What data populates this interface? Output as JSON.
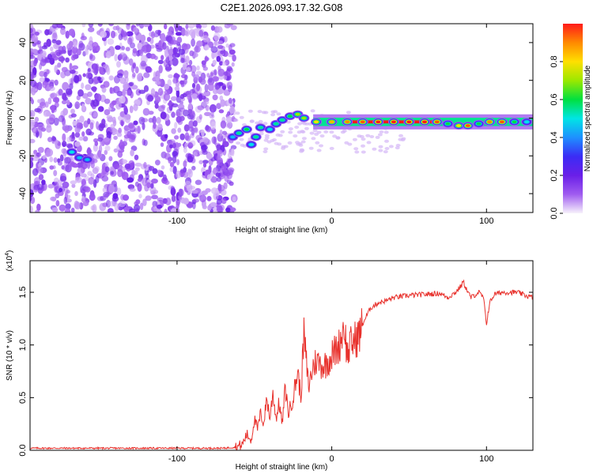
{
  "title": "C2E1.2026.093.17.32.G08",
  "colors": {
    "snr_line": "#e8312c",
    "colormap": [
      "#f7f2fb",
      "#a05cf0",
      "#6a1fe8",
      "#3b2cf5",
      "#1e90ff",
      "#00e5e5",
      "#00e040",
      "#9be800",
      "#ffe000",
      "#ff8a00",
      "#ff1a1a"
    ]
  },
  "chart_data": [
    {
      "type": "heatmap",
      "xlabel": "Height of straight line (km)",
      "ylabel": "Frequency (Hz)",
      "xlim": [
        -195,
        130
      ],
      "ylim": [
        -50,
        50
      ],
      "xticks": [
        -100,
        0,
        100
      ],
      "yticks": [
        -40,
        -20,
        0,
        20,
        40
      ],
      "colorbar": {
        "label": "Normalized spectral amplitude",
        "range": [
          0,
          1
        ],
        "ticks": [
          "0.0",
          "0.2",
          "0.4",
          "0.6",
          "0.8"
        ]
      },
      "noise_region_x": [
        -195,
        -63
      ],
      "feature": [
        {
          "x": -64,
          "y": -10,
          "amp": 0.45
        },
        {
          "x": -60,
          "y": -8,
          "amp": 0.55
        },
        {
          "x": -55,
          "y": -6,
          "amp": 0.6
        },
        {
          "x": -52,
          "y": -14,
          "amp": 0.5
        },
        {
          "x": -49,
          "y": -10,
          "amp": 0.55
        },
        {
          "x": -46,
          "y": -5,
          "amp": 0.55
        },
        {
          "x": -40,
          "y": -6,
          "amp": 0.5
        },
        {
          "x": -36,
          "y": -3,
          "amp": 0.55
        },
        {
          "x": -32,
          "y": -1,
          "amp": 0.55
        },
        {
          "x": -27,
          "y": 1,
          "amp": 0.6
        },
        {
          "x": -22,
          "y": 2,
          "amp": 0.7
        },
        {
          "x": -18,
          "y": 0,
          "amp": 0.7
        },
        {
          "x": -10,
          "y": -2,
          "amp": 0.8
        },
        {
          "x": 0,
          "y": -2,
          "amp": 0.85
        },
        {
          "x": 10,
          "y": -2,
          "amp": 0.9
        },
        {
          "x": 20,
          "y": -2,
          "amp": 0.95
        },
        {
          "x": 30,
          "y": -2,
          "amp": 1.0
        },
        {
          "x": 40,
          "y": -2,
          "amp": 1.0
        },
        {
          "x": 50,
          "y": -2,
          "amp": 1.0
        },
        {
          "x": 60,
          "y": -2,
          "amp": 1.0
        },
        {
          "x": 68,
          "y": -2,
          "amp": 0.95
        },
        {
          "x": 75,
          "y": -3,
          "amp": 0.6
        },
        {
          "x": 82,
          "y": -4,
          "amp": 0.8
        },
        {
          "x": 88,
          "y": -4,
          "amp": 0.95
        },
        {
          "x": 95,
          "y": -3,
          "amp": 0.6
        },
        {
          "x": 102,
          "y": -2,
          "amp": 0.9
        },
        {
          "x": 110,
          "y": -2,
          "amp": 0.95
        },
        {
          "x": 118,
          "y": -2,
          "amp": 0.6
        },
        {
          "x": 126,
          "y": -2,
          "amp": 0.5
        }
      ],
      "noise_feature": [
        {
          "x": -168,
          "y": -18,
          "amp": 0.5
        },
        {
          "x": -163,
          "y": -21,
          "amp": 0.45
        },
        {
          "x": -158,
          "y": -22,
          "amp": 0.45
        }
      ]
    },
    {
      "type": "line",
      "xlabel": "Height of straight line (km)",
      "ylabel": "SNR (10 * v/v)",
      "ylabel_multiplier": "(x10",
      "ylabel_multiplier_exp": "4",
      "ylabel_multiplier_close": ")",
      "xlim": [
        -195,
        130
      ],
      "ylim": [
        0,
        1.8
      ],
      "xticks": [
        -100,
        0,
        100
      ],
      "yticks": [
        "0.0",
        "0.5",
        "1.0",
        "1.5"
      ],
      "series": [
        {
          "x": [
            -195,
            -160,
            -120,
            -90,
            -70,
            -62,
            -58,
            -55,
            -52,
            -50,
            -48,
            -46,
            -44,
            -42,
            -40,
            -38,
            -36,
            -34,
            -32,
            -30,
            -28,
            -25,
            -22,
            -20,
            -18,
            -15,
            -12,
            -10,
            -5,
            0,
            5,
            8,
            10,
            12,
            15,
            18,
            20,
            25,
            30,
            35,
            40,
            50,
            60,
            70,
            75,
            80,
            83,
            85,
            88,
            90,
            95,
            98,
            100,
            102,
            105,
            110,
            115,
            120,
            125,
            130
          ],
          "y": [
            0.02,
            0.02,
            0.02,
            0.02,
            0.02,
            0.03,
            0.05,
            0.15,
            0.1,
            0.3,
            0.2,
            0.35,
            0.25,
            0.5,
            0.3,
            0.55,
            0.3,
            0.45,
            0.25,
            0.6,
            0.35,
            0.5,
            0.75,
            0.5,
            1.1,
            0.6,
            0.8,
            0.85,
            0.8,
            0.9,
            1.0,
            1.2,
            0.9,
            1.0,
            1.05,
            1.1,
            1.2,
            1.35,
            1.4,
            1.42,
            1.45,
            1.47,
            1.48,
            1.49,
            1.45,
            1.5,
            1.55,
            1.6,
            1.5,
            1.45,
            1.5,
            1.45,
            1.2,
            1.4,
            1.48,
            1.5,
            1.5,
            1.5,
            1.47,
            1.45
          ]
        }
      ]
    }
  ]
}
